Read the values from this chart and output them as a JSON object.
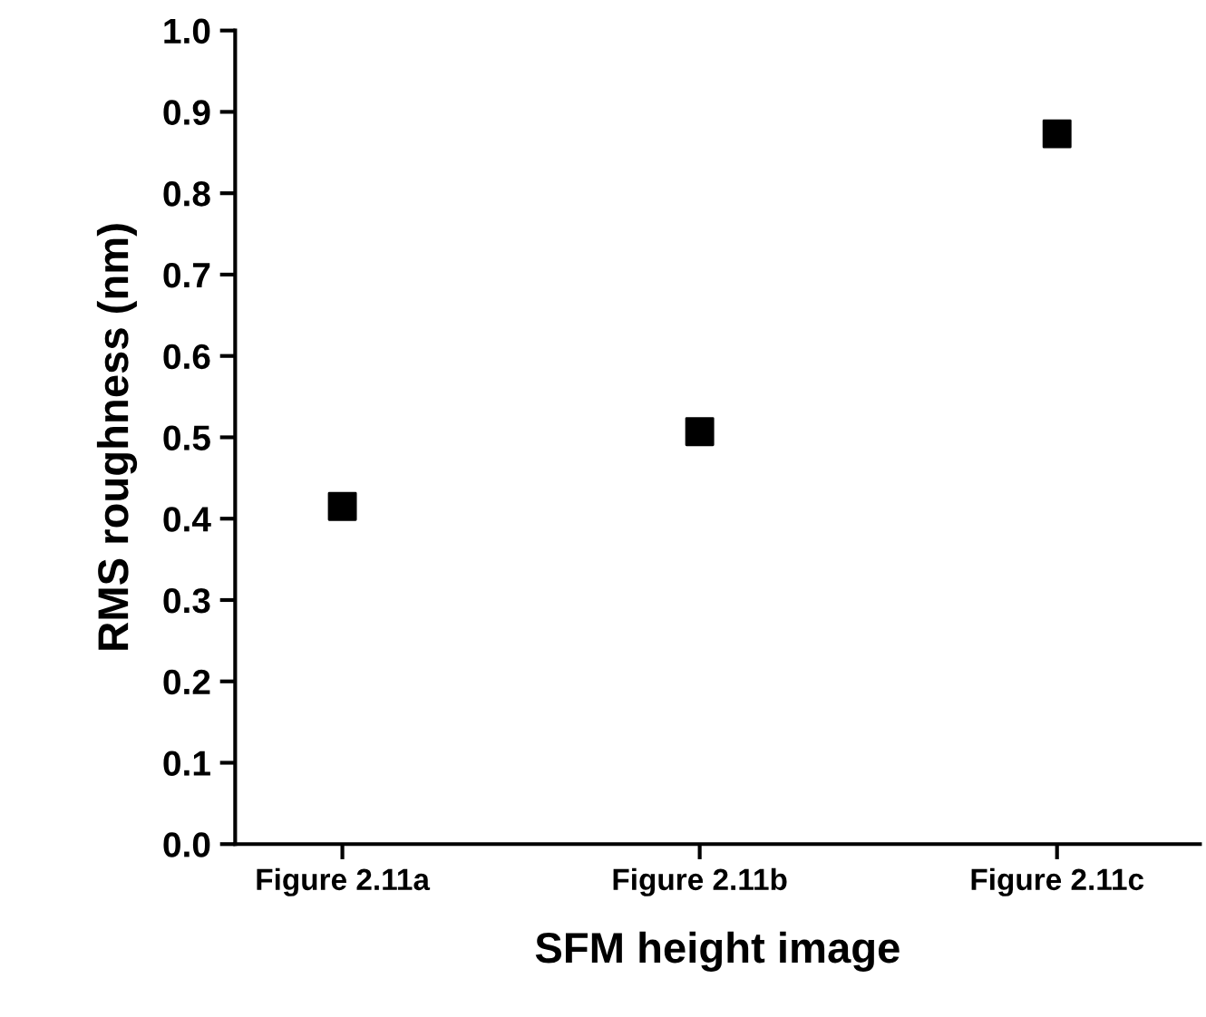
{
  "chart_data": {
    "type": "scatter",
    "xlabel": "SFM height image",
    "ylabel": "RMS roughness (nm)",
    "categories": [
      "Figure 2.11a",
      "Figure 2.11b",
      "Figure 2.11c"
    ],
    "values": [
      0.415,
      0.507,
      0.873
    ],
    "color": "#000000",
    "marker": "square",
    "ylim": [
      0.0,
      1.0
    ],
    "yticks": [
      {
        "value": 0.0,
        "label": "0.0"
      },
      0.1,
      0.2,
      0.3,
      0.4,
      0.5,
      0.6,
      0.7,
      0.8,
      0.9,
      {
        "value": 1.0,
        "label": "1.0"
      }
    ],
    "grid": false,
    "legend": false
  }
}
